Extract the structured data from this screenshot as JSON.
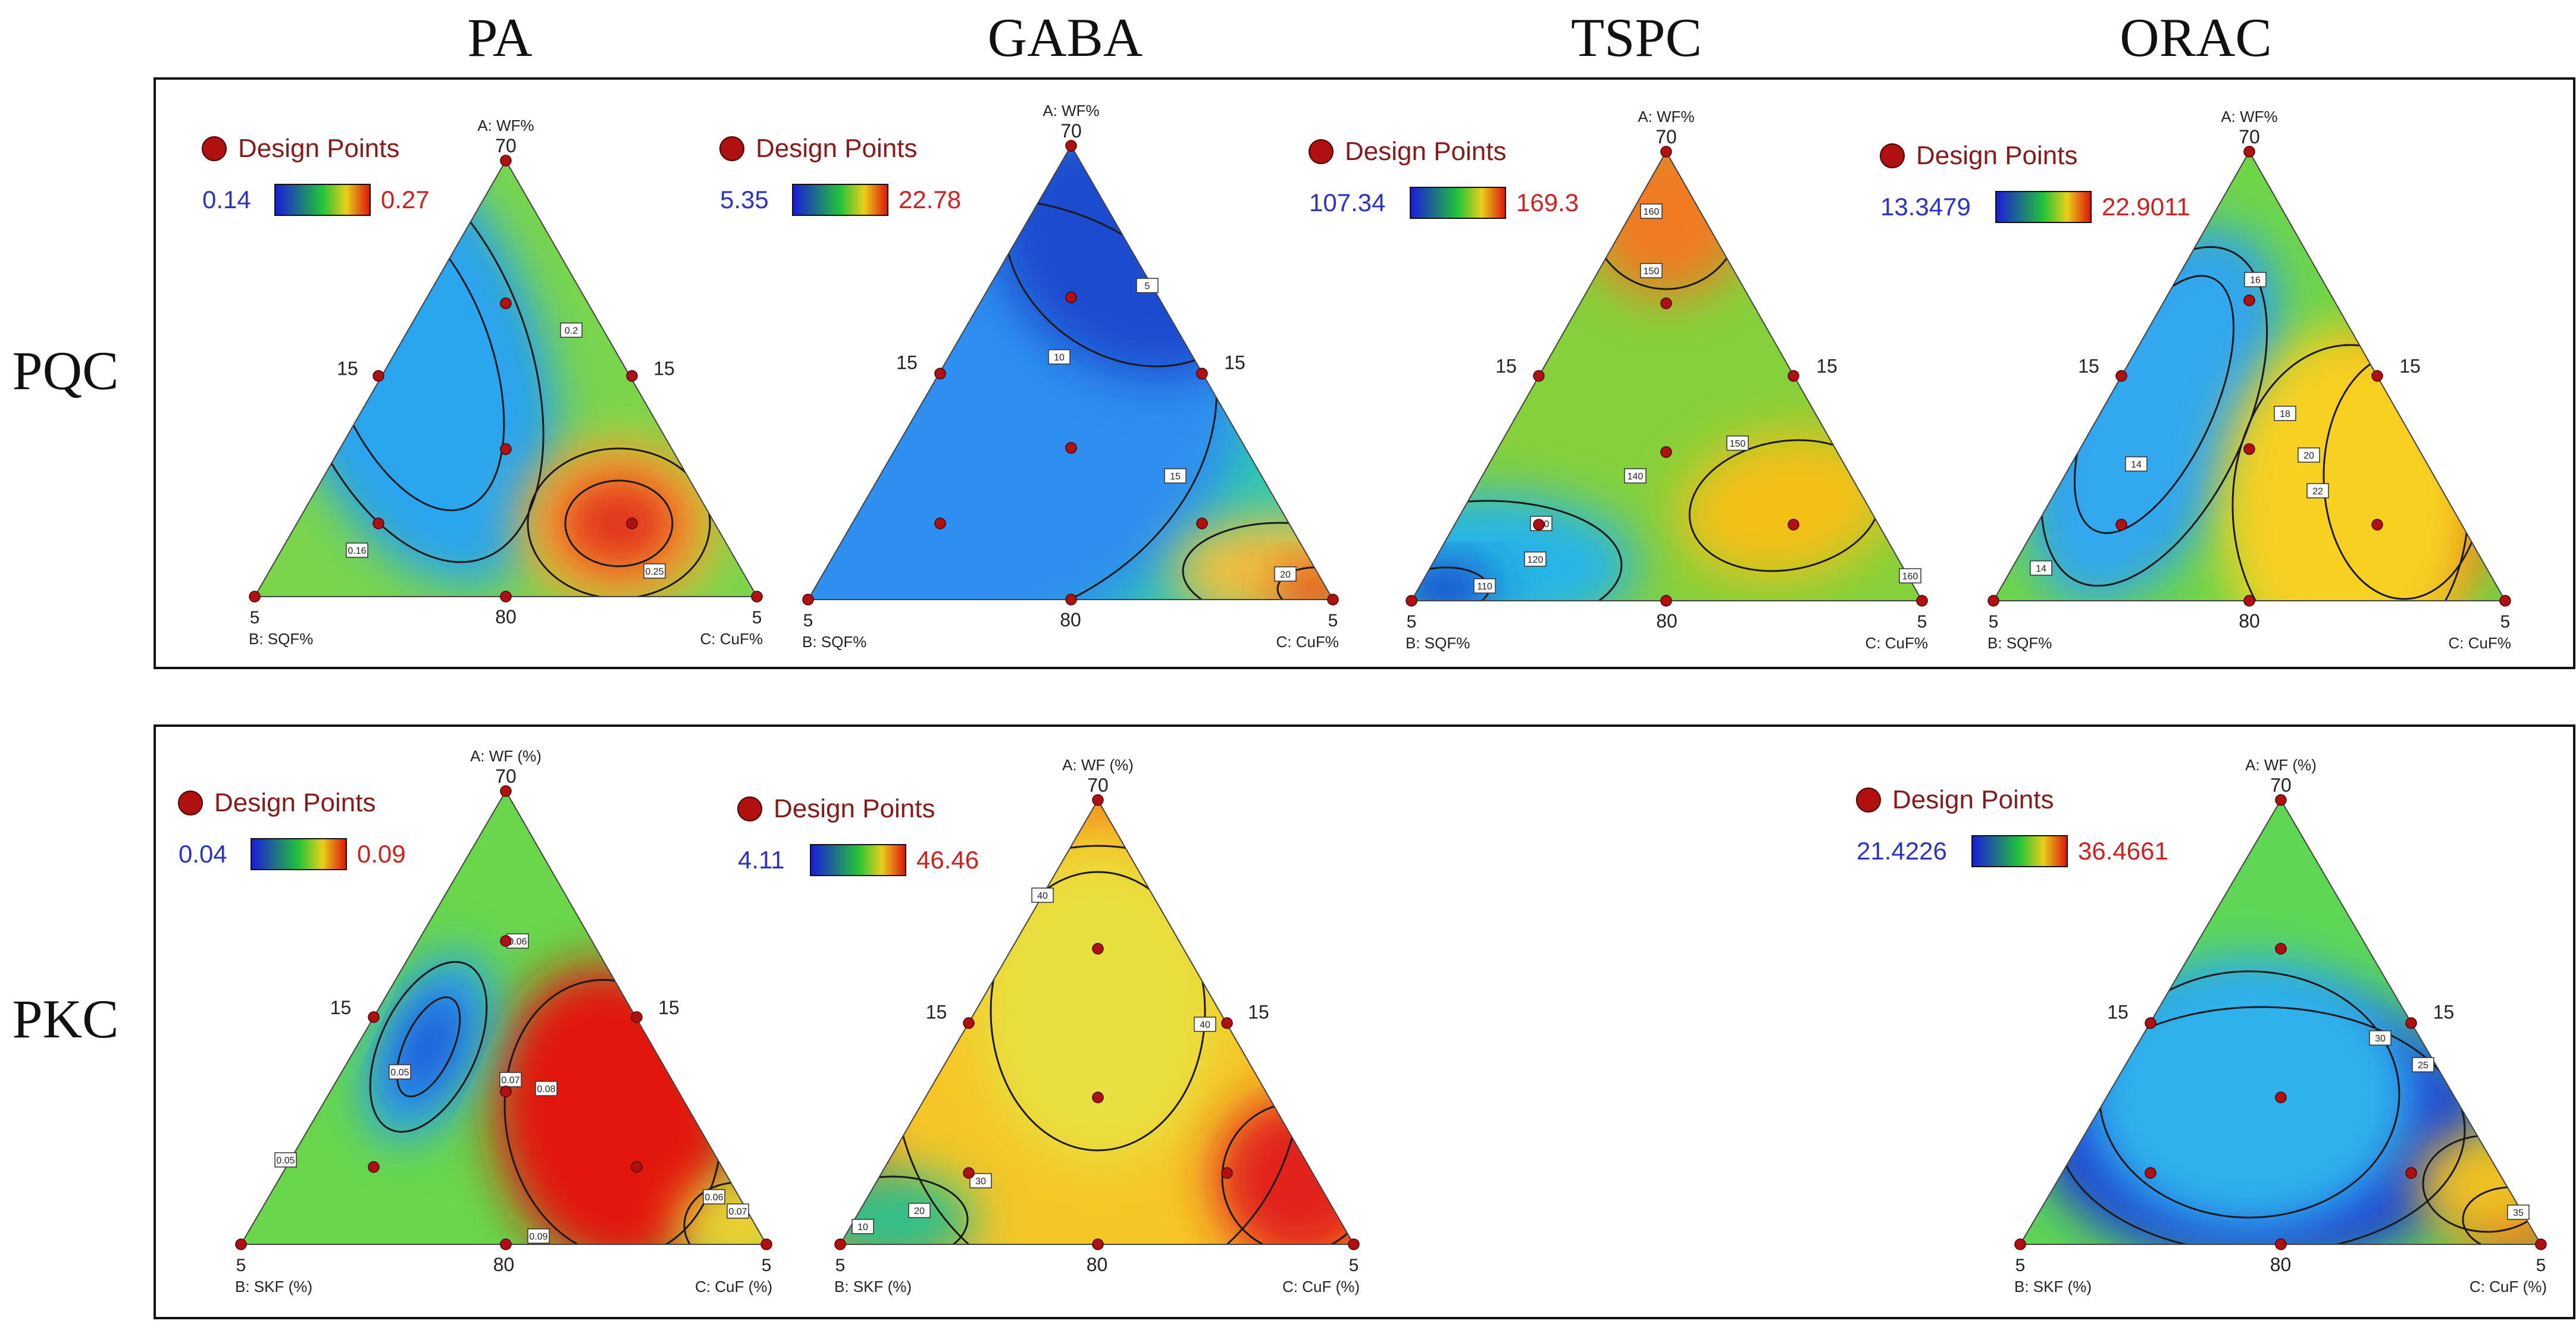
{
  "column_headers": [
    "PA",
    "GABA",
    "TSPC",
    "ORAC"
  ],
  "row_headers": [
    "PQC",
    "PKC"
  ],
  "chart_data": [
    {
      "type": "ternary-contour",
      "row": "PQC",
      "column": "PA",
      "response": "PA",
      "axis_a": "A: WF%",
      "axis_b": "B: SQF%",
      "axis_c": "C: CuF%",
      "tick_top": "70",
      "tick_side": "15",
      "tick_base": "80",
      "tick_corner": "5",
      "legend_label": "Design Points",
      "color_min": "0.14",
      "color_max": "0.27",
      "contour_labels": [
        "0.2",
        "0.16",
        "0.25"
      ]
    },
    {
      "type": "ternary-contour",
      "row": "PQC",
      "column": "GABA",
      "response": "GABA",
      "axis_a": "A: WF%",
      "axis_b": "B: SQF%",
      "axis_c": "C: CuF%",
      "tick_top": "70",
      "tick_side": "15",
      "tick_base": "80",
      "tick_corner": "5",
      "legend_label": "Design Points",
      "color_min": "5.35",
      "color_max": "22.78",
      "contour_labels": [
        "5",
        "10",
        "15",
        "20"
      ]
    },
    {
      "type": "ternary-contour",
      "row": "PQC",
      "column": "TSPC",
      "response": "TSPC",
      "axis_a": "A: WF%",
      "axis_b": "B: SQF%",
      "axis_c": "C: CuF%",
      "tick_top": "70",
      "tick_side": "15",
      "tick_base": "80",
      "tick_corner": "5",
      "legend_label": "Design Points",
      "color_min": "107.34",
      "color_max": "169.3",
      "contour_labels": [
        "160",
        "150",
        "140",
        "150",
        "130",
        "120",
        "110",
        "160"
      ]
    },
    {
      "type": "ternary-contour",
      "row": "PQC",
      "column": "ORAC",
      "response": "ORAC",
      "axis_a": "A: WF%",
      "axis_b": "B: SQF%",
      "axis_c": "C: CuF%",
      "tick_top": "70",
      "tick_side": "15",
      "tick_base": "80",
      "tick_corner": "5",
      "legend_label": "Design Points",
      "color_min": "13.3479",
      "color_max": "22.9011",
      "contour_labels": [
        "16",
        "14",
        "18",
        "20",
        "22",
        "14"
      ]
    },
    {
      "type": "ternary-contour",
      "row": "PKC",
      "column": "PA",
      "response": "PA",
      "axis_a": "A: WF (%)",
      "axis_b": "B: SKF (%)",
      "axis_c": "C: CuF (%)",
      "tick_top": "70",
      "tick_side": "15",
      "tick_base": "80",
      "tick_corner": "5",
      "legend_label": "Design Points",
      "color_min": "0.04",
      "color_max": "0.09",
      "contour_labels": [
        "0.06",
        "0.05",
        "0.07",
        "0.08",
        "0.05",
        "0.09",
        "0.06",
        "0.07"
      ]
    },
    {
      "type": "ternary-contour",
      "row": "PKC",
      "column": "GABA",
      "response": "GABA",
      "axis_a": "A: WF (%)",
      "axis_b": "B: SKF (%)",
      "axis_c": "C: CuF (%)",
      "tick_top": "70",
      "tick_side": "15",
      "tick_base": "80",
      "tick_corner": "5",
      "legend_label": "Design Points",
      "color_min": "4.11",
      "color_max": "46.46",
      "contour_labels": [
        "40",
        "40",
        "30",
        "20",
        "10"
      ]
    },
    {
      "type": "ternary-contour",
      "row": "PKC",
      "column": "ORAC",
      "response": "ORAC",
      "axis_a": "A: WF (%)",
      "axis_b": "B: SKF (%)",
      "axis_c": "C: CuF (%)",
      "tick_top": "70",
      "tick_side": "15",
      "tick_base": "80",
      "tick_corner": "5",
      "legend_label": "Design Points",
      "color_min": "21.4226",
      "color_max": "36.4661",
      "contour_labels": [
        "30",
        "25",
        "35"
      ]
    }
  ],
  "colors": {
    "low": "#1a1adb",
    "mid": "#22c33a",
    "high": "#e0120f",
    "point": "#b01010",
    "min_text": "#2a33c8",
    "max_text": "#d22020"
  }
}
